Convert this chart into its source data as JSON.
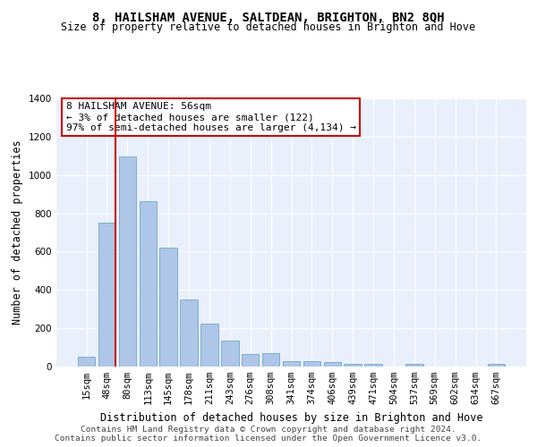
{
  "title": "8, HAILSHAM AVENUE, SALTDEAN, BRIGHTON, BN2 8QH",
  "subtitle": "Size of property relative to detached houses in Brighton and Hove",
  "xlabel": "Distribution of detached houses by size in Brighton and Hove",
  "ylabel": "Number of detached properties",
  "footer1": "Contains HM Land Registry data © Crown copyright and database right 2024.",
  "footer2": "Contains public sector information licensed under the Open Government Licence v3.0.",
  "categories": [
    "15sqm",
    "48sqm",
    "80sqm",
    "113sqm",
    "145sqm",
    "178sqm",
    "211sqm",
    "243sqm",
    "276sqm",
    "308sqm",
    "341sqm",
    "374sqm",
    "406sqm",
    "439sqm",
    "471sqm",
    "504sqm",
    "537sqm",
    "569sqm",
    "602sqm",
    "634sqm",
    "667sqm"
  ],
  "values": [
    50,
    750,
    1095,
    865,
    620,
    350,
    225,
    135,
    65,
    70,
    30,
    30,
    22,
    15,
    15,
    0,
    12,
    0,
    0,
    0,
    12
  ],
  "bar_color": "#aec6e8",
  "bar_edge_color": "#5a9fc0",
  "vline_color": "#cc0000",
  "vline_x_index": 1.43,
  "annotation_text": "8 HAILSHAM AVENUE: 56sqm\n← 3% of detached houses are smaller (122)\n97% of semi-detached houses are larger (4,134) →",
  "annotation_box_color": "#ffffff",
  "annotation_box_edge_color": "#cc0000",
  "ylim": [
    0,
    1400
  ],
  "yticks": [
    0,
    200,
    400,
    600,
    800,
    1000,
    1200,
    1400
  ],
  "bg_color": "#eaf0fb",
  "grid_color": "#ffffff",
  "title_fontsize": 10,
  "subtitle_fontsize": 8.5,
  "annotation_fontsize": 8,
  "xlabel_fontsize": 8.5,
  "ylabel_fontsize": 8.5,
  "tick_fontsize": 7.5,
  "footer_fontsize": 6.8
}
